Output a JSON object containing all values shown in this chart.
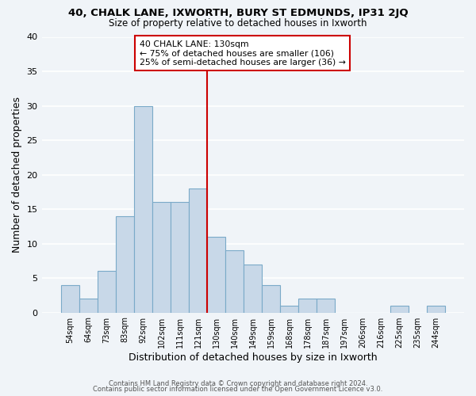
{
  "title": "40, CHALK LANE, IXWORTH, BURY ST EDMUNDS, IP31 2JQ",
  "subtitle": "Size of property relative to detached houses in Ixworth",
  "xlabel": "Distribution of detached houses by size in Ixworth",
  "ylabel": "Number of detached properties",
  "bar_labels": [
    "54sqm",
    "64sqm",
    "73sqm",
    "83sqm",
    "92sqm",
    "102sqm",
    "111sqm",
    "121sqm",
    "130sqm",
    "140sqm",
    "149sqm",
    "159sqm",
    "168sqm",
    "178sqm",
    "187sqm",
    "197sqm",
    "206sqm",
    "216sqm",
    "225sqm",
    "235sqm",
    "244sqm"
  ],
  "bar_values": [
    4,
    2,
    6,
    14,
    30,
    16,
    16,
    18,
    11,
    9,
    7,
    4,
    1,
    2,
    2,
    0,
    0,
    0,
    1,
    0,
    1
  ],
  "bar_color": "#c8d8e8",
  "bar_edgecolor": "#7aaac8",
  "vline_color": "#cc0000",
  "annotation_title": "40 CHALK LANE: 130sqm",
  "annotation_line1": "← 75% of detached houses are smaller (106)",
  "annotation_line2": "25% of semi-detached houses are larger (36) →",
  "annotation_box_edgecolor": "#cc0000",
  "ylim": [
    0,
    40
  ],
  "yticks": [
    0,
    5,
    10,
    15,
    20,
    25,
    30,
    35,
    40
  ],
  "footer1": "Contains HM Land Registry data © Crown copyright and database right 2024.",
  "footer2": "Contains public sector information licensed under the Open Government Licence v3.0.",
  "background_color": "#f0f4f8",
  "grid_color": "#e0e8f0"
}
